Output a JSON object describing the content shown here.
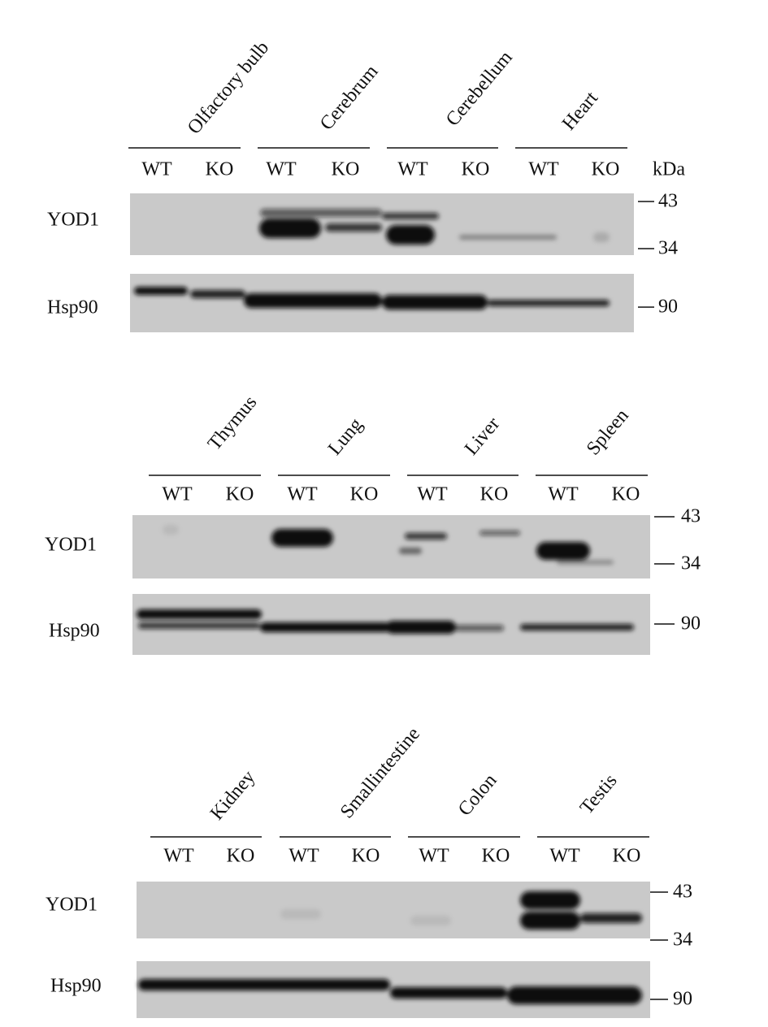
{
  "panels": [
    {
      "tissues": [
        "Olfactory bulb",
        "Cerebrum",
        "Cerebellum",
        "Heart"
      ],
      "lanes": [
        "WT",
        "KO",
        "WT",
        "KO",
        "WT",
        "KO",
        "WT",
        "KO"
      ],
      "unit": "kDa",
      "blots": [
        {
          "label": "YOD1",
          "markers": [
            43,
            34
          ]
        },
        {
          "label": "Hsp90",
          "markers": [
            90
          ]
        }
      ]
    },
    {
      "tissues": [
        "Thymus",
        "Lung",
        "Liver",
        "Spleen"
      ],
      "lanes": [
        "WT",
        "KO",
        "WT",
        "KO",
        "WT",
        "KO",
        "WT",
        "KO"
      ],
      "blots": [
        {
          "label": "YOD1",
          "markers": [
            43,
            34
          ]
        },
        {
          "label": "Hsp90",
          "markers": [
            90
          ]
        }
      ]
    },
    {
      "tissues": [
        "Kidney",
        "Smallintestine",
        "Colon",
        "Testis"
      ],
      "lanes": [
        "WT",
        "KO",
        "WT",
        "KO",
        "WT",
        "KO",
        "WT",
        "KO"
      ],
      "blots": [
        {
          "label": "YOD1",
          "markers": [
            43,
            34
          ]
        },
        {
          "label": "Hsp90",
          "markers": [
            90
          ]
        }
      ]
    }
  ]
}
